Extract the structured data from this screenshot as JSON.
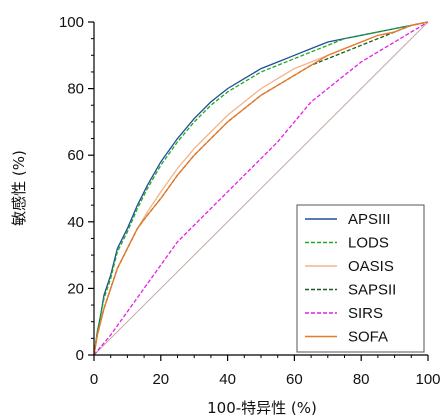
{
  "chart_data": {
    "type": "line",
    "title": "",
    "xlabel": "100-特异性 (%)",
    "ylabel": "敏感性 (%)",
    "xlim": [
      0,
      100
    ],
    "ylim": [
      0,
      100
    ],
    "x_ticks": [
      0,
      20,
      40,
      60,
      80,
      100
    ],
    "y_ticks": [
      0,
      20,
      40,
      60,
      80,
      100
    ],
    "grid": false,
    "legend_position": "bottom-right",
    "reference_line": {
      "from": [
        0,
        0
      ],
      "to": [
        100,
        100
      ],
      "color": "#c8a8a8"
    },
    "series": [
      {
        "name": "APSIII",
        "color": "#1f4e9a",
        "dash": "solid",
        "x": [
          0,
          1,
          2,
          3,
          5,
          7,
          10,
          13,
          16,
          20,
          25,
          30,
          35,
          40,
          45,
          50,
          55,
          60,
          65,
          70,
          75,
          80,
          85,
          90,
          95,
          100
        ],
        "y": [
          0,
          7,
          12,
          18,
          24,
          32,
          38,
          45,
          51,
          58,
          65,
          71,
          76,
          80,
          83,
          86,
          88,
          90,
          92,
          94,
          95,
          96,
          97,
          98,
          99,
          100
        ]
      },
      {
        "name": "LODS",
        "color": "#22a822",
        "dash": "dashed",
        "x": [
          0,
          1,
          2,
          3,
          5,
          7,
          10,
          13,
          16,
          20,
          25,
          30,
          35,
          40,
          45,
          50,
          55,
          60,
          65,
          70,
          75,
          80,
          85,
          90,
          95,
          100
        ],
        "y": [
          0,
          7,
          12,
          17,
          23,
          31,
          37,
          44,
          50,
          57,
          64,
          70,
          75,
          79,
          82,
          85,
          87,
          89,
          91,
          93,
          95,
          96,
          97,
          98,
          99,
          100
        ]
      },
      {
        "name": "OASIS",
        "color": "#f2b48c",
        "dash": "solid",
        "x": [
          0,
          1,
          2,
          3,
          5,
          7,
          10,
          13,
          16,
          20,
          25,
          30,
          35,
          40,
          45,
          50,
          55,
          60,
          65,
          70,
          75,
          80,
          85,
          90,
          95,
          100
        ],
        "y": [
          0,
          6,
          10,
          14,
          20,
          26,
          32,
          38,
          43,
          49,
          56,
          62,
          67,
          72,
          76,
          80,
          83,
          86,
          88,
          90,
          92,
          94,
          96,
          97,
          99,
          100
        ]
      },
      {
        "name": "SAPSII",
        "color": "#1d5a1d",
        "dash": "dashed",
        "x": [
          0,
          1,
          2,
          3,
          5,
          7,
          10,
          13,
          16,
          20,
          25,
          30,
          35,
          40,
          45,
          50,
          55,
          60,
          65,
          70,
          75,
          80,
          85,
          90,
          95,
          100
        ],
        "y": [
          0,
          6,
          10,
          14,
          20,
          26,
          32,
          38,
          42,
          47,
          54,
          60,
          65,
          70,
          74,
          78,
          81,
          84,
          87,
          89,
          91,
          93,
          95,
          97,
          99,
          100
        ]
      },
      {
        "name": "SIRS",
        "color": "#e61ee6",
        "dash": "dashed",
        "x": [
          0,
          5,
          10,
          15,
          20,
          25,
          30,
          35,
          40,
          45,
          50,
          55,
          60,
          65,
          70,
          75,
          80,
          85,
          90,
          95,
          100
        ],
        "y": [
          0,
          6,
          13,
          20,
          27,
          34,
          39,
          44,
          49,
          54,
          59,
          64,
          70,
          76,
          80,
          84,
          88,
          91,
          94,
          97,
          100
        ]
      },
      {
        "name": "SOFA",
        "color": "#e8792a",
        "dash": "solid",
        "x": [
          0,
          1,
          2,
          3,
          5,
          7,
          10,
          13,
          16,
          20,
          25,
          30,
          35,
          40,
          45,
          50,
          55,
          60,
          65,
          70,
          75,
          80,
          85,
          90,
          95,
          100
        ],
        "y": [
          0,
          6,
          10,
          14,
          20,
          26,
          32,
          38,
          42,
          47,
          54,
          60,
          65,
          70,
          74,
          78,
          81,
          84,
          87,
          90,
          92,
          94,
          96,
          97,
          99,
          100
        ]
      }
    ]
  }
}
